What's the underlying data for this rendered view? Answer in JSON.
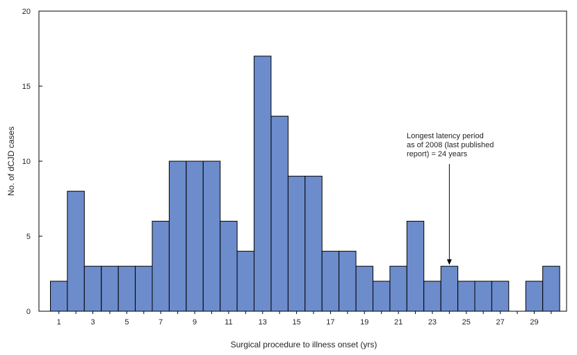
{
  "chart_data": {
    "type": "bar",
    "title": "",
    "xlabel": "Surgical procedure to illness onset (yrs)",
    "ylabel": "No. of dCJD cases",
    "ylim": [
      0,
      20
    ],
    "yticks": [
      0,
      5,
      10,
      15,
      20
    ],
    "xlim": [
      0,
      31
    ],
    "xtick_labels": [
      "1",
      "3",
      "5",
      "7",
      "9",
      "11",
      "13",
      "15",
      "17",
      "19",
      "21",
      "23",
      "25",
      "27",
      "29"
    ],
    "x": [
      1,
      2,
      3,
      4,
      5,
      6,
      7,
      8,
      9,
      10,
      11,
      12,
      13,
      14,
      15,
      16,
      17,
      18,
      19,
      20,
      21,
      22,
      23,
      24,
      25,
      26,
      27,
      28,
      29,
      30
    ],
    "values": [
      2,
      8,
      3,
      3,
      3,
      3,
      6,
      10,
      10,
      10,
      6,
      4,
      17,
      13,
      9,
      9,
      4,
      4,
      3,
      2,
      3,
      6,
      2,
      3,
      2,
      2,
      2,
      0,
      2,
      3
    ],
    "bar_color": "#6c8ccc",
    "annotation": {
      "lines": [
        "Longest latency period",
        "as of 2008 (last published",
        "report) = 24 years"
      ],
      "target_x": 24
    }
  }
}
